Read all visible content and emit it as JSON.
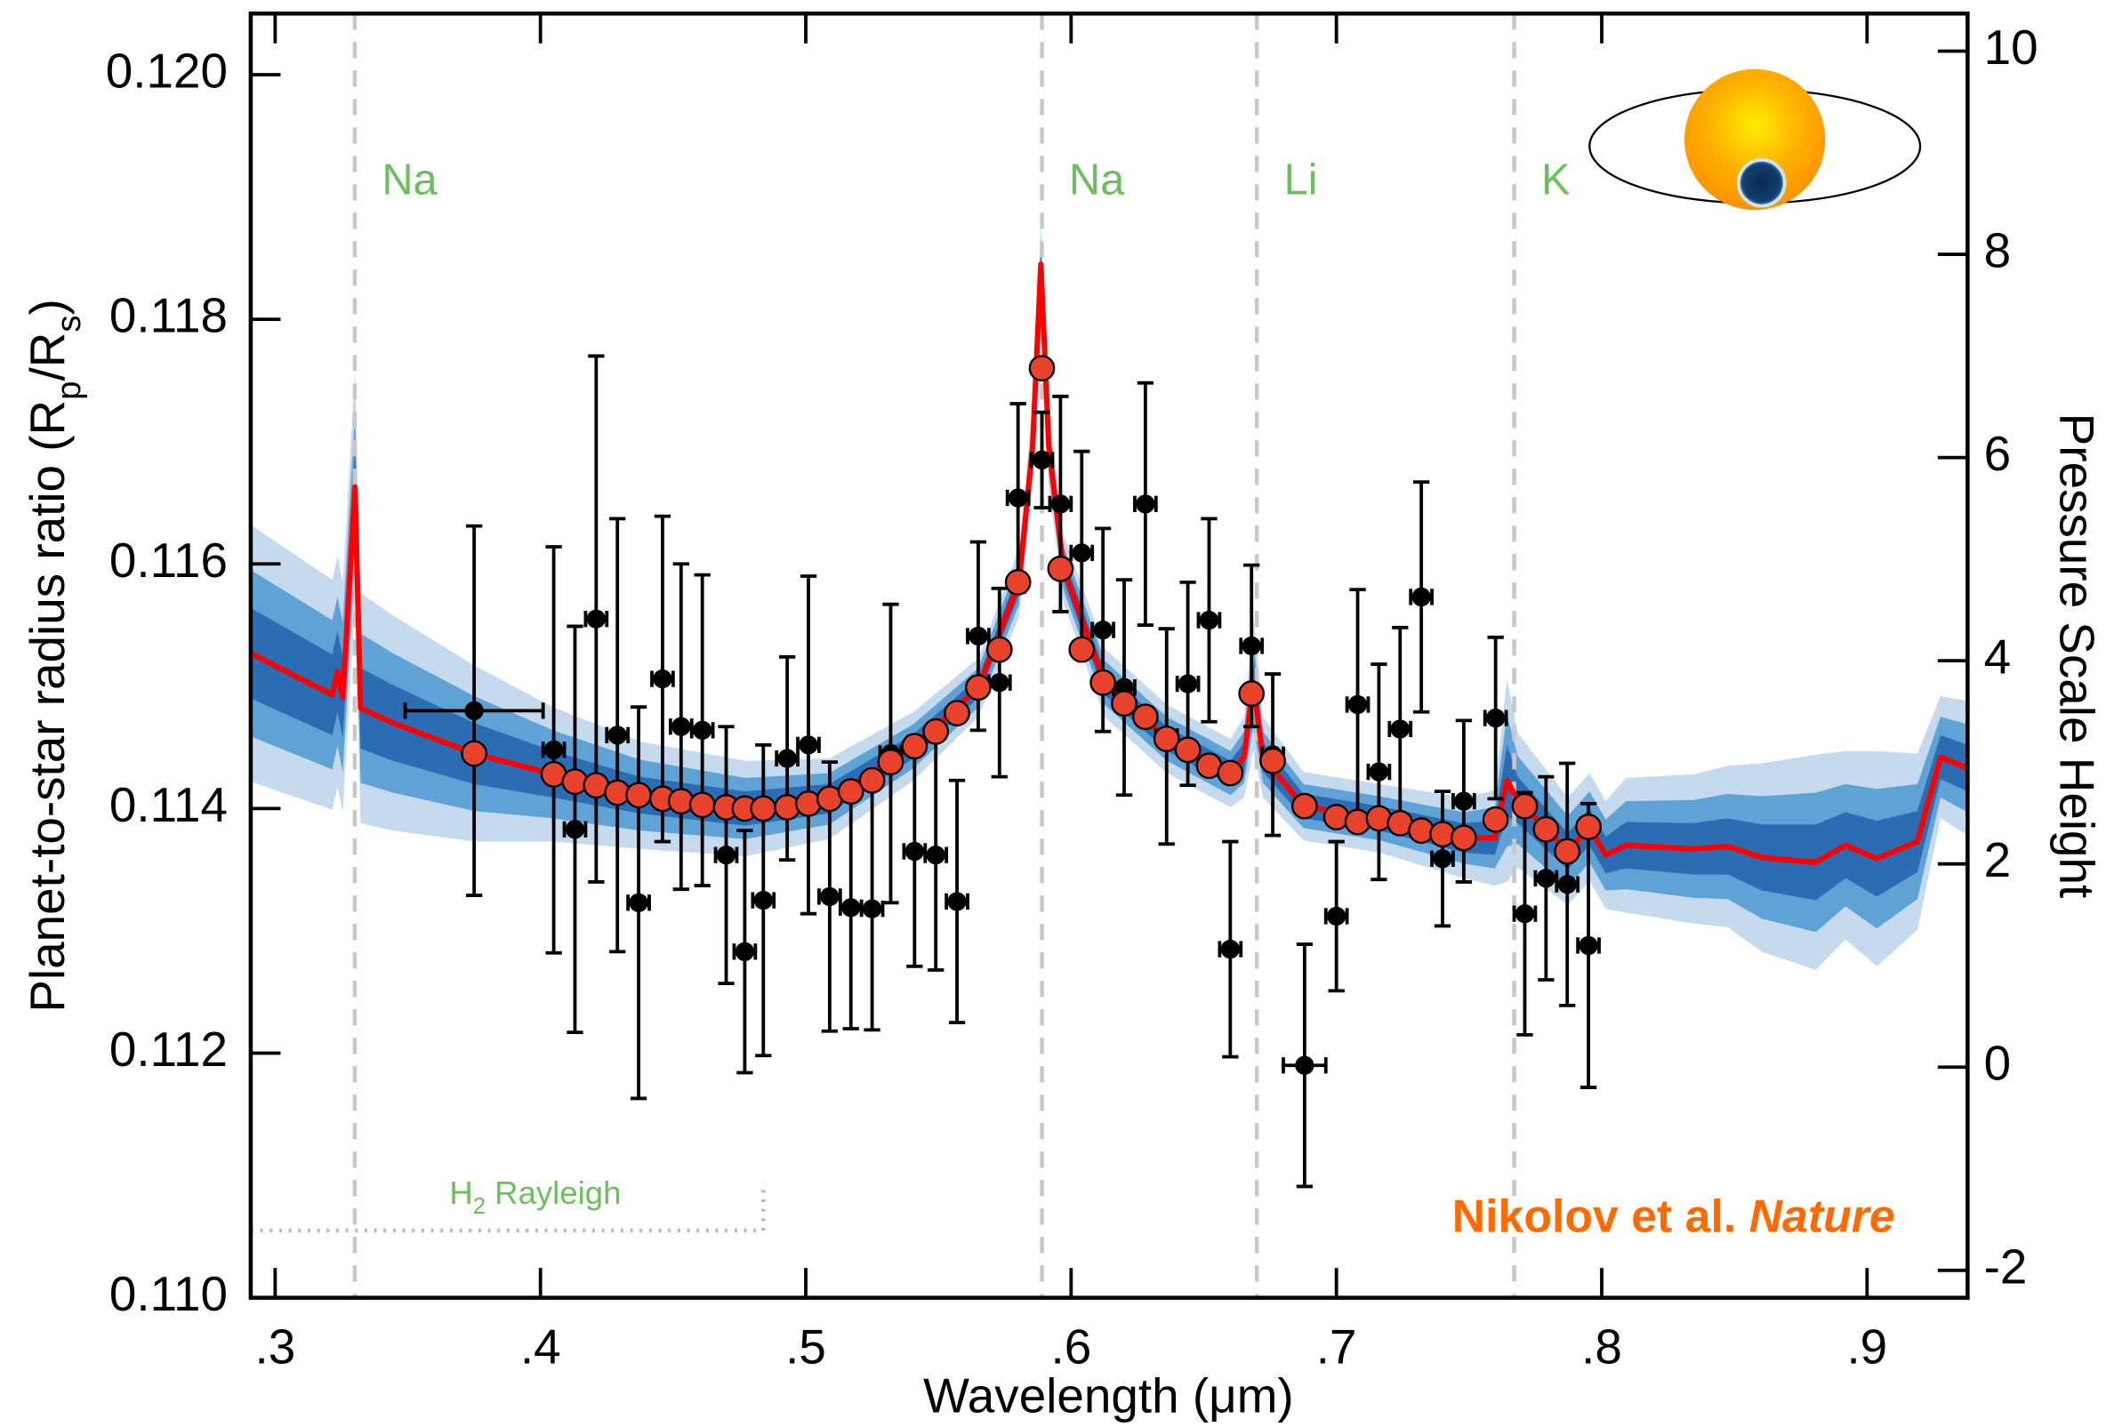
{
  "chart_data": {
    "type": "errorbar",
    "xlabel": "Wavelength (μm)",
    "ylabel": [
      "Planet-to-star radius ratio (R",
      "p",
      "/R",
      "s",
      ")"
    ],
    "y2label": "Pressure Scale Height",
    "xlim": [
      0.2908,
      0.9379
    ],
    "ylim": [
      0.11,
      0.1205
    ],
    "y2lim": [
      -2.27,
      10.37
    ],
    "xticks": [
      {
        "value": 0.3,
        "label": ".3"
      },
      {
        "value": 0.4,
        "label": ".4"
      },
      {
        "value": 0.5,
        "label": ".5"
      },
      {
        "value": 0.6,
        "label": ".6"
      },
      {
        "value": 0.7,
        "label": ".7"
      },
      {
        "value": 0.8,
        "label": ".8"
      },
      {
        "value": 0.9,
        "label": ".9"
      }
    ],
    "yticks": [
      {
        "value": 0.11,
        "label": "0.110"
      },
      {
        "value": 0.112,
        "label": "0.112"
      },
      {
        "value": 0.114,
        "label": "0.114"
      },
      {
        "value": 0.116,
        "label": "0.116"
      },
      {
        "value": 0.118,
        "label": "0.118"
      },
      {
        "value": 0.12,
        "label": "0.120"
      }
    ],
    "y2ticks": [
      -2,
      0,
      2,
      4,
      6,
      8,
      10
    ],
    "line_color": "#c8c8c8",
    "label_color": "#6cc05b",
    "lines": [
      {
        "x": 0.33,
        "label": "Na"
      },
      {
        "x": 0.589,
        "label": "Na"
      },
      {
        "x": 0.67,
        "label": "Li"
      },
      {
        "x": 0.767,
        "label": "K"
      }
    ],
    "model": {
      "color": "#ff0000",
      "x": [
        0.2908,
        0.3215,
        0.3235,
        0.3255,
        0.3301,
        0.3322,
        0.3444,
        0.375,
        0.4047,
        0.4374,
        0.4772,
        0.5089,
        0.5406,
        0.5651,
        0.5804,
        0.5855,
        0.5886,
        0.5916,
        0.5972,
        0.6126,
        0.6361,
        0.6601,
        0.6652,
        0.6687,
        0.6723,
        0.6876,
        0.7162,
        0.7479,
        0.7597,
        0.7643,
        0.7683,
        0.7872,
        0.7954,
        0.8015,
        0.8092,
        0.8347,
        0.8475,
        0.8603,
        0.8807,
        0.8919,
        0.9037,
        0.919,
        0.9277,
        0.9379
      ],
      "values": [
        0.11527,
        0.11493,
        0.11512,
        0.11491,
        0.11663,
        0.11482,
        0.1147,
        0.11445,
        0.11428,
        0.11411,
        0.114,
        0.11408,
        0.11451,
        0.11499,
        0.11585,
        0.11696,
        0.11845,
        0.11696,
        0.11596,
        0.11503,
        0.11457,
        0.11429,
        0.11442,
        0.11503,
        0.11442,
        0.11402,
        0.11392,
        0.11376,
        0.11376,
        0.11423,
        0.11407,
        0.11365,
        0.11385,
        0.11362,
        0.1137,
        0.11367,
        0.11369,
        0.1136,
        0.11356,
        0.1137,
        0.11359,
        0.11373,
        0.11442,
        0.11433
      ],
      "bands": [
        {
          "color": "#c6daee",
          "halfwidths": [
            0.00105,
            0.00094,
            0.00094,
            0.00094,
            0.00094,
            0.00094,
            0.00088,
            0.00072,
            0.00055,
            0.00044,
            0.00039,
            0.00033,
            0.00028,
            0.00024,
            0.00028,
            0.00033,
            0.00033,
            0.00033,
            0.00028,
            0.00028,
            0.00028,
            0.00028,
            0.00033,
            0.00055,
            0.00033,
            0.00028,
            0.00028,
            0.00033,
            0.00039,
            0.00083,
            0.00055,
            0.00044,
            0.00044,
            0.00044,
            0.00055,
            0.00061,
            0.00066,
            0.00077,
            0.00088,
            0.00077,
            0.00088,
            0.00072,
            0.0005,
            0.00055
          ]
        },
        {
          "color": "#5fa3d6",
          "halfwidths": [
            0.00068,
            0.00061,
            0.00061,
            0.00061,
            0.00061,
            0.00061,
            0.00057,
            0.00047,
            0.00036,
            0.00029,
            0.00025,
            0.00021,
            0.00018,
            0.00016,
            0.00018,
            0.00021,
            0.00021,
            0.00021,
            0.00018,
            0.00018,
            0.00018,
            0.00018,
            0.00021,
            0.00036,
            0.00021,
            0.00018,
            0.00018,
            0.00021,
            0.00025,
            0.00054,
            0.00036,
            0.00029,
            0.00029,
            0.00029,
            0.00036,
            0.0004,
            0.00043,
            0.0005,
            0.00057,
            0.0005,
            0.00057,
            0.00047,
            0.00033,
            0.00036
          ]
        },
        {
          "color": "#2b6cb3",
          "halfwidths": [
            0.00037,
            0.00033,
            0.00033,
            0.00033,
            0.00033,
            0.00033,
            0.00031,
            0.00025,
            0.00019,
            0.00015,
            0.00014,
            0.00012,
            0.0001,
            8e-05,
            0.0001,
            0.00012,
            0.00012,
            0.00012,
            0.0001,
            0.0001,
            0.0001,
            0.0001,
            0.00012,
            0.00019,
            0.00012,
            0.0001,
            0.0001,
            0.00012,
            0.00014,
            0.00029,
            0.00019,
            0.00015,
            0.00015,
            0.00015,
            0.00019,
            0.00021,
            0.00023,
            0.00027,
            0.00031,
            0.00027,
            0.00031,
            0.00025,
            0.00018,
            0.00019
          ]
        }
      ]
    },
    "points": {
      "x": [
        0.375,
        0.405,
        0.413,
        0.421,
        0.429,
        0.437,
        0.446,
        0.453,
        0.461,
        0.47,
        0.477,
        0.484,
        0.493,
        0.501,
        0.509,
        0.517,
        0.525,
        0.532,
        0.541,
        0.549,
        0.557,
        0.565,
        0.573,
        0.58,
        0.589,
        0.596,
        0.604,
        0.612,
        0.62,
        0.628,
        0.636,
        0.644,
        0.652,
        0.66,
        0.668,
        0.676,
        0.688,
        0.7,
        0.708,
        0.716,
        0.724,
        0.732,
        0.74,
        0.748,
        0.76,
        0.771,
        0.779,
        0.787,
        0.795
      ],
      "observed": {
        "color": "#000000",
        "values": [
          0.1148,
          0.11448,
          0.11383,
          0.11555,
          0.1146,
          0.11323,
          0.11506,
          0.11467,
          0.11464,
          0.11362,
          0.11283,
          0.11325,
          0.11441,
          0.11452,
          0.11328,
          0.11319,
          0.11318,
          0.11445,
          0.11365,
          0.11362,
          0.11324,
          0.11541,
          0.11503,
          0.11654,
          0.11685,
          0.11649,
          0.11609,
          0.11546,
          0.11499,
          0.11649,
          0.11459,
          0.11502,
          0.11554,
          0.11285,
          0.11533,
          0.11444,
          0.1119,
          0.11312,
          0.11485,
          0.1143,
          0.11465,
          0.11573,
          0.11359,
          0.11406,
          0.11474,
          0.11314,
          0.11343,
          0.11338,
          0.11288
        ],
        "errors": [
          0.00151,
          0.00166,
          0.00166,
          0.00215,
          0.00177,
          0.0016,
          0.00133,
          0.00133,
          0.00127,
          0.00105,
          0.00099,
          0.00127,
          0.00083,
          0.00138,
          0.0011,
          0.00099,
          0.00099,
          0.00122,
          0.00094,
          0.00094,
          0.00099,
          0.00077,
          0.00077,
          0.00077,
          0.00039,
          0.00088,
          0.00083,
          0.00083,
          0.00088,
          0.00099,
          0.00088,
          0.00083,
          0.00083,
          0.00088,
          0.00066,
          0.00066,
          0.00099,
          0.00061,
          0.00094,
          0.00088,
          0.00083,
          0.00094,
          0.00055,
          0.00066,
          0.00066,
          0.00099,
          0.00083,
          0.00099,
          0.00116
        ],
        "x_errors": [
          0.026,
          0.004,
          0.004,
          0.004,
          0.004,
          0.004,
          0.004,
          0.004,
          0.004,
          0.004,
          0.004,
          0.004,
          0.004,
          0.004,
          0.004,
          0.004,
          0.004,
          0.004,
          0.004,
          0.004,
          0.004,
          0.004,
          0.004,
          0.004,
          0.004,
          0.004,
          0.004,
          0.004,
          0.004,
          0.004,
          0.004,
          0.004,
          0.004,
          0.004,
          0.004,
          0.004,
          0.008,
          0.004,
          0.004,
          0.004,
          0.004,
          0.004,
          0.004,
          0.004,
          0.004,
          0.004,
          0.004,
          0.004,
          0.004
        ]
      },
      "binned_model": {
        "color": "#e8412c",
        "values": [
          0.11445,
          0.11428,
          0.11422,
          0.11419,
          0.11413,
          0.11411,
          0.11408,
          0.11406,
          0.11403,
          0.11401,
          0.114,
          0.114,
          0.11401,
          0.11404,
          0.11408,
          0.11414,
          0.11423,
          0.11438,
          0.11451,
          0.11463,
          0.11478,
          0.11499,
          0.1153,
          0.11585,
          0.1176,
          0.11596,
          0.1153,
          0.11503,
          0.11486,
          0.11475,
          0.11457,
          0.11448,
          0.11435,
          0.11429,
          0.11494,
          0.11439,
          0.11402,
          0.11393,
          0.11389,
          0.11392,
          0.11388,
          0.11382,
          0.11379,
          0.11376,
          0.11391,
          0.11402,
          0.11383,
          0.11365,
          0.11385
        ]
      }
    },
    "rayleigh": {
      "parts": [
        "H",
        "2",
        " Rayleigh"
      ],
      "line_x": [
        0.2908,
        0.484
      ],
      "line_y": 0.11055,
      "cap_top": 0.11094
    },
    "credit": {
      "parts": [
        "Nikolov et al. ",
        "Nature"
      ],
      "color": "#ff6a00"
    }
  }
}
